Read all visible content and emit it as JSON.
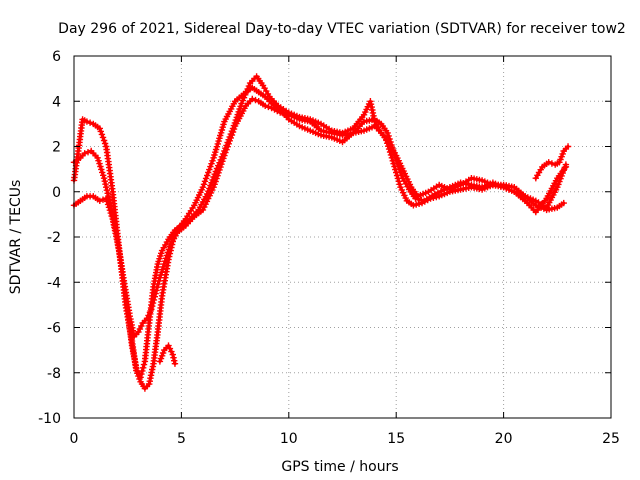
{
  "chart_data": {
    "type": "scatter",
    "title": "Day 296 of 2021, Sidereal Day-to-day VTEC variation (SDTVAR) for receiver tow2",
    "xlabel": "GPS time / hours",
    "ylabel": "SDTVAR / TECUs",
    "xlim": [
      0,
      25
    ],
    "ylim": [
      -10,
      6
    ],
    "xticks": [
      "0",
      "5",
      "10",
      "15",
      "20",
      "25"
    ],
    "yticks": [
      "-10",
      "-8",
      "-6",
      "-4",
      "-2",
      "0",
      "2",
      "4",
      "6"
    ],
    "xtick_values": [
      0,
      5,
      10,
      15,
      20,
      25
    ],
    "ytick_values": [
      -10,
      -8,
      -6,
      -4,
      -2,
      0,
      2,
      4,
      6
    ],
    "grid": true,
    "marker": "+",
    "color": "#ff0000",
    "series": [
      {
        "name": "trace-1",
        "x": [
          0.0,
          0.3,
          0.5,
          0.8,
          1.1,
          1.4,
          1.7,
          2.0,
          2.3,
          2.6,
          2.8,
          3.0,
          3.2,
          3.4,
          3.6,
          3.8,
          4.0,
          4.2,
          4.5,
          4.8,
          5.2,
          5.6,
          6.0,
          6.5,
          7.0,
          7.5,
          8.0,
          8.3,
          8.6,
          8.9,
          9.2,
          9.6,
          10.0,
          10.5,
          11.0,
          11.5,
          12.0,
          12.5,
          13.0,
          13.5,
          14.0,
          14.5,
          14.8,
          15.2,
          15.5,
          15.8,
          16.2,
          16.6,
          17.0,
          17.5,
          18.0,
          18.5,
          19.0,
          19.5,
          20.0,
          20.5,
          21.0,
          21.5,
          22.0,
          22.5,
          22.9
        ],
        "y": [
          1.3,
          1.5,
          1.7,
          1.8,
          1.5,
          0.6,
          -0.6,
          -2.0,
          -3.8,
          -5.5,
          -6.4,
          -6.2,
          -5.8,
          -5.6,
          -5.2,
          -4.5,
          -3.8,
          -3.2,
          -2.3,
          -1.8,
          -1.5,
          -1.1,
          -0.8,
          0.2,
          1.6,
          2.9,
          3.8,
          4.1,
          4.0,
          3.8,
          3.7,
          3.5,
          3.4,
          3.2,
          3.1,
          2.7,
          2.6,
          2.5,
          2.6,
          2.7,
          2.9,
          2.4,
          1.5,
          0.2,
          -0.4,
          -0.6,
          -0.5,
          -0.3,
          -0.2,
          0.0,
          0.1,
          0.2,
          0.1,
          0.3,
          0.3,
          0.2,
          -0.2,
          -0.4,
          -0.7,
          0.2,
          1.2
        ]
      },
      {
        "name": "trace-2",
        "x": [
          0.0,
          0.2,
          0.4,
          0.6,
          0.9,
          1.2,
          1.5,
          1.8,
          2.1,
          2.4,
          2.7,
          2.9,
          3.1,
          3.3,
          3.5,
          3.7,
          3.9,
          4.1,
          4.4,
          4.6,
          4.8,
          5.2,
          5.6,
          6.0,
          6.5,
          7.0,
          7.5,
          8.0,
          8.3,
          8.6,
          8.9,
          9.2,
          9.6,
          10.0,
          10.5,
          11.0,
          11.5,
          12.0,
          12.5,
          13.0,
          13.5,
          14.0,
          14.3,
          14.6,
          15.0,
          15.3,
          15.6,
          15.9,
          16.3,
          16.8,
          17.5,
          18.0,
          18.5,
          19.0,
          19.5,
          20.0,
          20.5,
          21.0,
          21.5,
          22.0,
          22.5,
          22.9
        ],
        "y": [
          0.5,
          1.8,
          3.2,
          3.1,
          3.0,
          2.8,
          2.0,
          0.0,
          -2.5,
          -5.0,
          -6.6,
          -7.9,
          -8.4,
          -8.7,
          -8.5,
          -7.6,
          -6.2,
          -4.6,
          -3.0,
          -2.2,
          -1.7,
          -1.2,
          -0.6,
          0.2,
          1.5,
          3.1,
          4.0,
          4.4,
          4.6,
          4.4,
          4.2,
          3.9,
          3.6,
          3.2,
          2.9,
          2.7,
          2.5,
          2.4,
          2.2,
          2.6,
          3.1,
          3.2,
          3.0,
          2.6,
          1.4,
          0.6,
          0.1,
          -0.3,
          -0.4,
          -0.1,
          0.2,
          0.4,
          0.3,
          0.2,
          0.4,
          0.2,
          0.0,
          -0.4,
          -0.9,
          -0.3,
          0.6,
          1.1
        ]
      },
      {
        "name": "trace-3",
        "x": [
          0.0,
          0.3,
          0.6,
          0.9,
          1.2,
          1.5,
          1.8,
          2.1,
          2.4,
          2.7,
          2.9,
          3.1,
          3.3,
          3.5,
          3.7,
          3.9,
          4.1,
          4.4,
          4.7,
          5.0,
          5.4,
          5.8,
          6.2,
          6.6,
          7.0,
          7.4,
          7.8,
          8.2,
          8.5,
          8.8,
          9.1,
          9.5,
          10.0,
          10.5,
          11.0,
          11.5,
          12.0,
          12.5,
          13.0,
          13.5,
          13.8,
          14.0,
          14.3,
          14.7,
          15.0,
          15.4,
          15.7,
          16.0,
          16.5,
          17.0,
          17.5,
          18.0,
          18.5,
          19.0,
          19.5,
          20.0,
          20.5,
          21.0,
          21.5,
          22.0,
          22.5,
          22.8
        ],
        "y": [
          -0.6,
          -0.4,
          -0.2,
          -0.2,
          -0.4,
          -0.3,
          -1.2,
          -2.6,
          -4.6,
          -6.8,
          -7.8,
          -8.2,
          -7.5,
          -5.8,
          -4.2,
          -3.2,
          -2.6,
          -2.1,
          -1.7,
          -1.5,
          -1.2,
          -0.8,
          -0.1,
          0.9,
          1.8,
          2.8,
          3.9,
          4.8,
          5.1,
          4.7,
          4.2,
          3.8,
          3.5,
          3.3,
          3.2,
          3.0,
          2.7,
          2.6,
          2.8,
          3.4,
          4.0,
          3.1,
          2.6,
          2.1,
          1.6,
          0.8,
          0.2,
          -0.2,
          0.0,
          0.3,
          0.1,
          0.3,
          0.6,
          0.5,
          0.3,
          0.2,
          0.0,
          -0.2,
          -0.6,
          -0.8,
          -0.7,
          -0.5
        ]
      },
      {
        "name": "trace-4",
        "x": [
          4.0,
          4.2,
          4.4,
          4.6,
          4.7
        ],
        "y": [
          -7.5,
          -7.0,
          -6.8,
          -7.2,
          -7.6
        ]
      },
      {
        "name": "trace-5",
        "x": [
          21.5,
          21.8,
          22.1,
          22.4,
          22.6,
          22.8,
          23.0
        ],
        "y": [
          0.6,
          1.1,
          1.3,
          1.2,
          1.3,
          1.8,
          2.0
        ]
      }
    ]
  }
}
